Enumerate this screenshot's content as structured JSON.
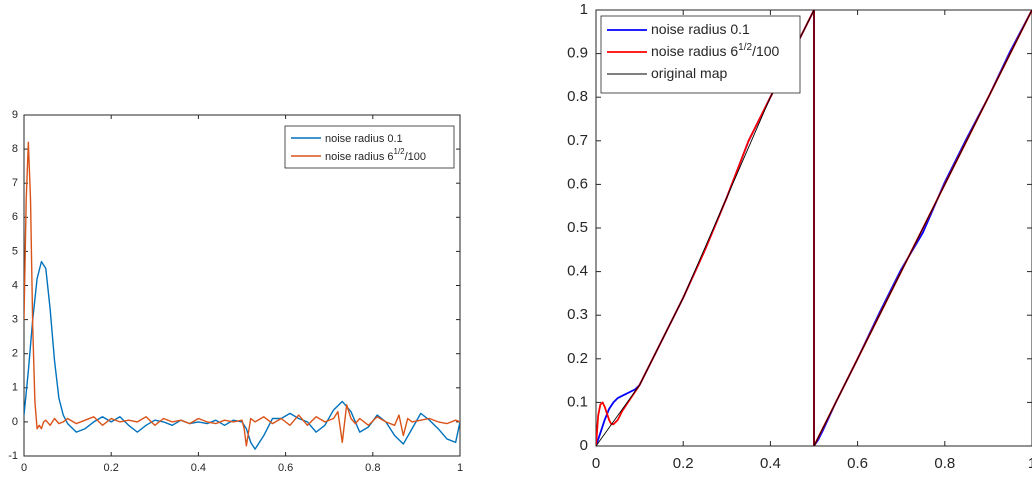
{
  "chart_data": [
    {
      "type": "line",
      "title": "",
      "xlabel": "",
      "ylabel": "",
      "xlim": [
        0,
        1
      ],
      "ylim": [
        -1,
        9
      ],
      "xticks": [
        "0",
        "0.2",
        "0.4",
        "0.6",
        "0.8",
        "1"
      ],
      "yticks": [
        "-1",
        "0",
        "1",
        "2",
        "3",
        "4",
        "5",
        "6",
        "7",
        "8",
        "9"
      ],
      "grid": false,
      "legend_position": "top-right",
      "series": [
        {
          "name": "noise radius 0.1",
          "color": "#0072bd",
          "x": [
            0,
            0.01,
            0.02,
            0.03,
            0.04,
            0.05,
            0.06,
            0.07,
            0.08,
            0.09,
            0.1,
            0.12,
            0.14,
            0.16,
            0.18,
            0.2,
            0.22,
            0.24,
            0.26,
            0.28,
            0.3,
            0.32,
            0.34,
            0.36,
            0.38,
            0.4,
            0.42,
            0.44,
            0.46,
            0.48,
            0.5,
            0.51,
            0.52,
            0.53,
            0.55,
            0.57,
            0.59,
            0.61,
            0.63,
            0.65,
            0.67,
            0.69,
            0.71,
            0.73,
            0.75,
            0.77,
            0.79,
            0.81,
            0.83,
            0.85,
            0.87,
            0.89,
            0.91,
            0.93,
            0.95,
            0.97,
            0.99,
            1.0
          ],
          "y": [
            0.2,
            1.5,
            3.0,
            4.2,
            4.7,
            4.5,
            3.3,
            1.8,
            0.7,
            0.2,
            -0.05,
            -0.3,
            -0.2,
            0.0,
            0.15,
            0.0,
            0.15,
            -0.1,
            -0.3,
            -0.1,
            0.05,
            0.0,
            -0.1,
            0.05,
            -0.05,
            0.0,
            -0.05,
            0.05,
            -0.1,
            0.05,
            0.0,
            -0.2,
            -0.6,
            -0.8,
            -0.4,
            0.1,
            0.1,
            0.25,
            0.1,
            0.0,
            -0.3,
            -0.1,
            0.35,
            0.6,
            0.3,
            -0.3,
            -0.15,
            0.2,
            0.0,
            -0.4,
            -0.65,
            -0.2,
            0.25,
            0.05,
            -0.2,
            -0.5,
            -0.6,
            0.0
          ]
        },
        {
          "name": "noise radius 6^{1/2}/100",
          "color": "#d95319",
          "x": [
            0,
            0.005,
            0.01,
            0.015,
            0.02,
            0.025,
            0.03,
            0.035,
            0.04,
            0.045,
            0.05,
            0.06,
            0.07,
            0.08,
            0.09,
            0.1,
            0.12,
            0.14,
            0.16,
            0.18,
            0.2,
            0.22,
            0.24,
            0.26,
            0.28,
            0.3,
            0.32,
            0.34,
            0.36,
            0.38,
            0.4,
            0.42,
            0.44,
            0.46,
            0.48,
            0.5,
            0.505,
            0.51,
            0.515,
            0.52,
            0.53,
            0.55,
            0.57,
            0.59,
            0.61,
            0.63,
            0.65,
            0.67,
            0.69,
            0.71,
            0.72,
            0.73,
            0.74,
            0.75,
            0.76,
            0.77,
            0.79,
            0.81,
            0.83,
            0.85,
            0.86,
            0.87,
            0.88,
            0.89,
            0.91,
            0.93,
            0.95,
            0.97,
            0.99,
            1.0
          ],
          "y": [
            3.0,
            6.5,
            8.2,
            6.5,
            2.8,
            0.6,
            -0.2,
            -0.1,
            -0.2,
            0.0,
            0.05,
            -0.1,
            0.1,
            -0.05,
            0.0,
            0.1,
            -0.05,
            0.05,
            0.15,
            -0.1,
            0.1,
            0.0,
            0.05,
            0.0,
            0.15,
            -0.1,
            0.1,
            0.0,
            0.05,
            -0.05,
            0.1,
            0.0,
            -0.05,
            0.05,
            0.0,
            0.05,
            -0.2,
            -0.7,
            -0.3,
            0.1,
            0.0,
            0.15,
            -0.05,
            0.1,
            -0.1,
            0.2,
            -0.1,
            0.15,
            0.0,
            0.1,
            0.3,
            -0.6,
            0.5,
            0.1,
            -0.05,
            0.1,
            -0.1,
            0.15,
            0.0,
            -0.1,
            0.2,
            -0.4,
            0.1,
            0.0,
            0.05,
            0.1,
            0.0,
            -0.05,
            0.05,
            0.0
          ]
        }
      ]
    },
    {
      "type": "line",
      "title": "",
      "xlabel": "",
      "ylabel": "",
      "xlim": [
        0,
        1
      ],
      "ylim": [
        0,
        1
      ],
      "xticks": [
        "0",
        "0.2",
        "0.4",
        "0.6",
        "0.8",
        "1"
      ],
      "yticks": [
        "0",
        "0.1",
        "0.2",
        "0.3",
        "0.4",
        "0.5",
        "0.6",
        "0.7",
        "0.8",
        "0.9",
        "1"
      ],
      "grid": false,
      "legend_position": "top-left",
      "series": [
        {
          "name": "noise radius 0.1",
          "color": "#0000ff",
          "x": [
            0,
            0.01,
            0.02,
            0.03,
            0.04,
            0.05,
            0.06,
            0.07,
            0.08,
            0.09,
            0.1,
            0.15,
            0.2,
            0.25,
            0.3,
            0.35,
            0.4,
            0.45,
            0.5,
            0.5,
            0.51,
            0.52,
            0.55,
            0.6,
            0.65,
            0.7,
            0.75,
            0.8,
            0.85,
            0.9,
            0.95,
            1.0
          ],
          "y": [
            0,
            0.03,
            0.06,
            0.085,
            0.1,
            0.11,
            0.115,
            0.12,
            0.125,
            0.13,
            0.14,
            0.24,
            0.34,
            0.45,
            0.57,
            0.7,
            0.8,
            0.9,
            1.0,
            0.0,
            0.015,
            0.035,
            0.1,
            0.2,
            0.305,
            0.405,
            0.49,
            0.605,
            0.705,
            0.8,
            0.905,
            1.0
          ]
        },
        {
          "name": "noise radius 6^{1/2}/100",
          "color": "#ff0000",
          "x": [
            0,
            0.005,
            0.01,
            0.015,
            0.02,
            0.025,
            0.03,
            0.035,
            0.04,
            0.05,
            0.06,
            0.08,
            0.1,
            0.15,
            0.2,
            0.25,
            0.3,
            0.35,
            0.4,
            0.45,
            0.5,
            0.5,
            0.51,
            0.55,
            0.6,
            0.65,
            0.7,
            0.75,
            0.8,
            0.85,
            0.9,
            0.95,
            1.0
          ],
          "y": [
            0,
            0.07,
            0.095,
            0.1,
            0.09,
            0.075,
            0.06,
            0.05,
            0.05,
            0.06,
            0.08,
            0.11,
            0.14,
            0.24,
            0.34,
            0.45,
            0.57,
            0.7,
            0.8,
            0.9,
            1.0,
            0.0,
            0.02,
            0.1,
            0.2,
            0.3,
            0.4,
            0.5,
            0.6,
            0.7,
            0.8,
            0.9,
            1.0
          ]
        },
        {
          "name": "original map",
          "color": "#000000",
          "x": [
            0,
            0.1,
            0.2,
            0.3,
            0.4,
            0.5,
            0.5,
            0.6,
            0.7,
            0.8,
            0.9,
            1.0
          ],
          "y": [
            0,
            0.14,
            0.34,
            0.57,
            0.8,
            1.0,
            0.0,
            0.2,
            0.4,
            0.6,
            0.8,
            1.0
          ]
        }
      ]
    }
  ]
}
